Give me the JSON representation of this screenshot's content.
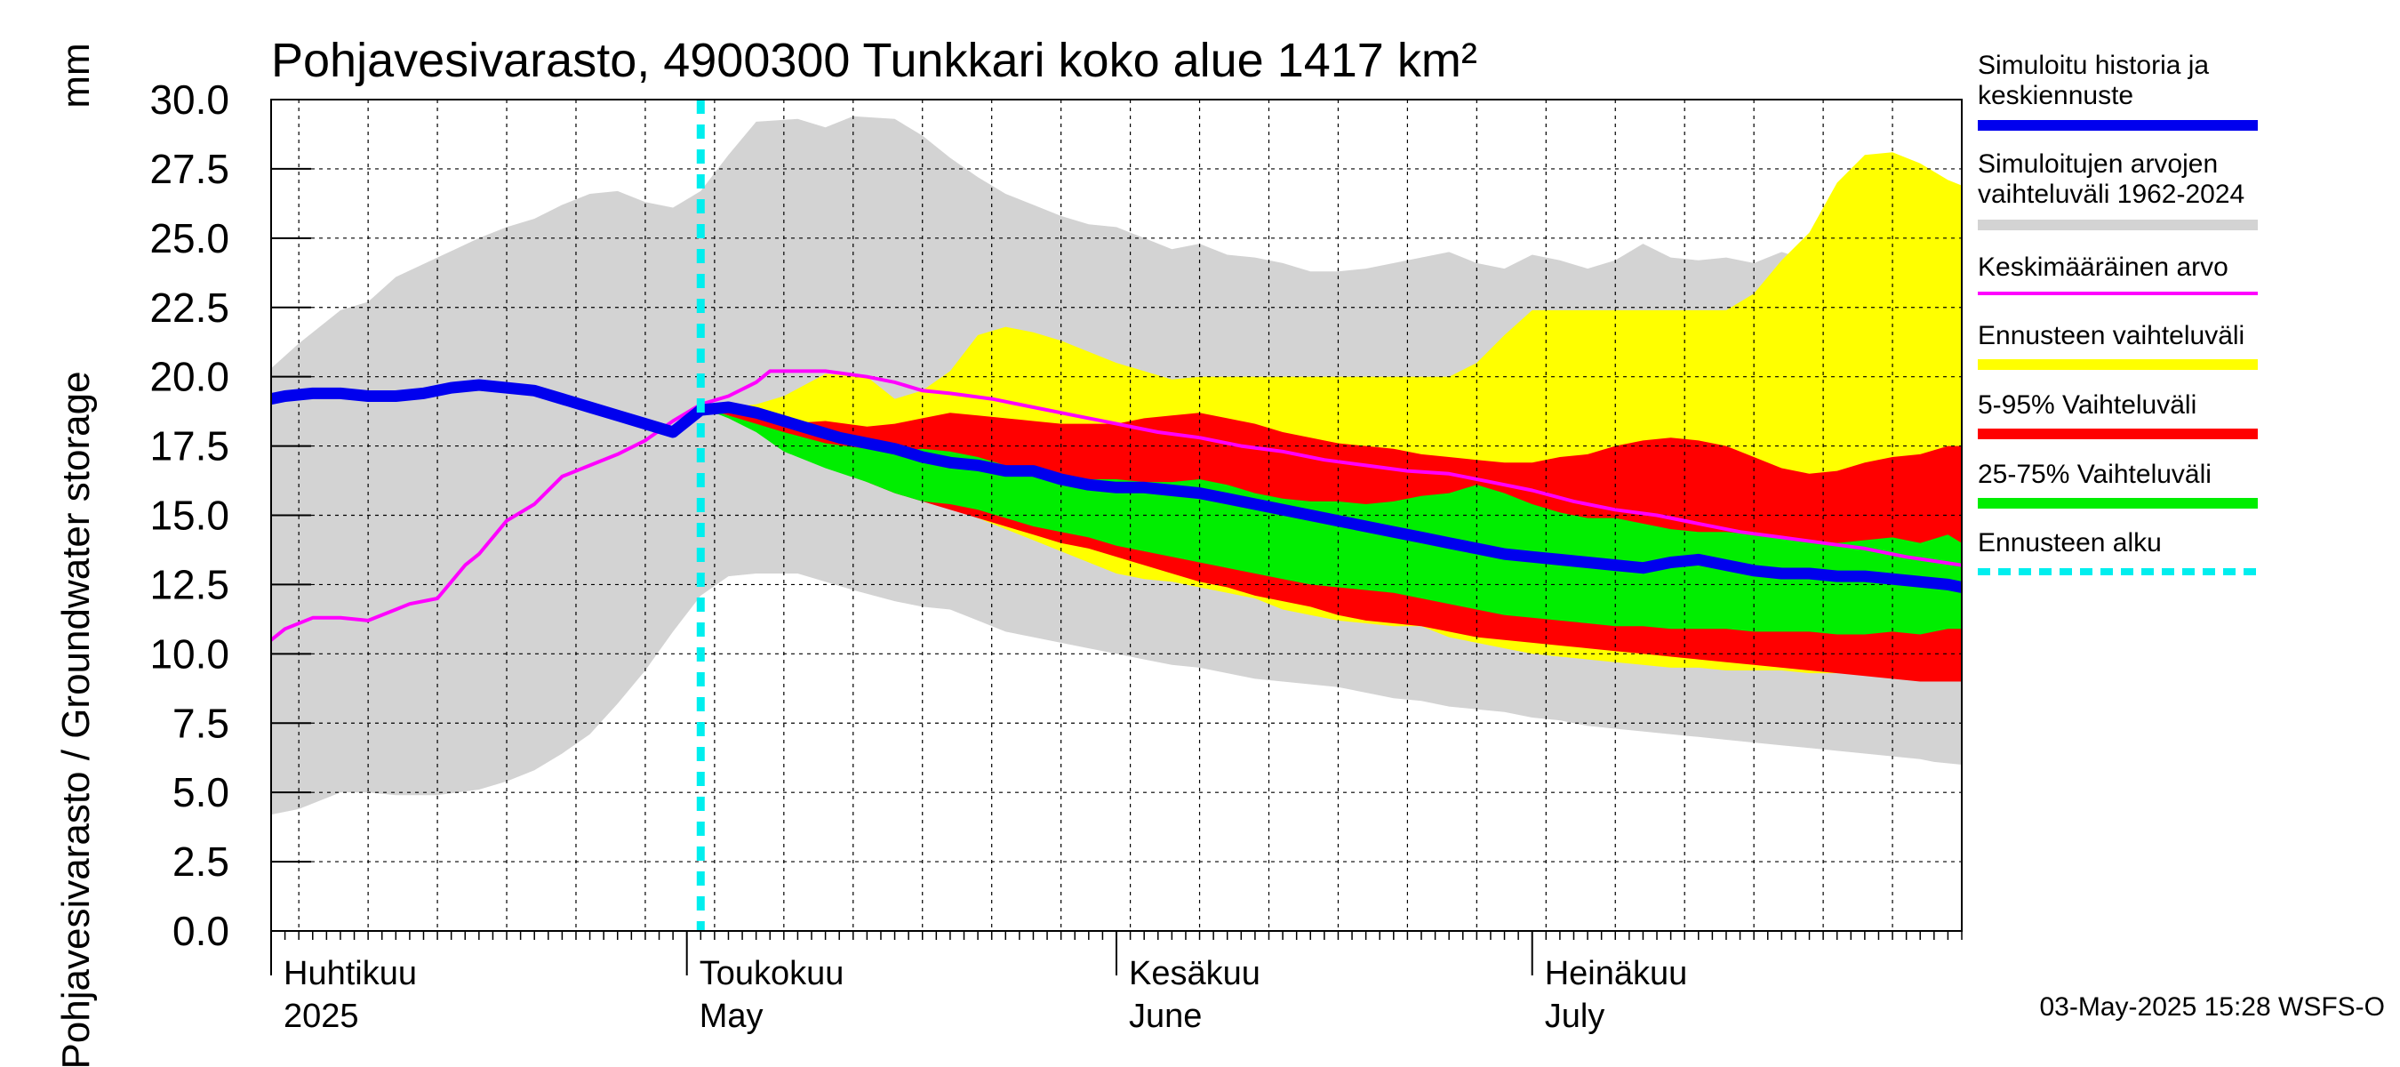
{
  "chart_data": {
    "type": "area",
    "title": "Pohjavesivarasto, 4900300 Tunkkari koko alue 1417 km²",
    "ylabel": "Pohjavesivarasto / Groundwater storage",
    "yunit": "mm",
    "ylim": [
      0,
      30
    ],
    "yticks": [
      "0.0",
      "2.5",
      "5.0",
      "7.5",
      "10.0",
      "12.5",
      "15.0",
      "17.5",
      "20.0",
      "22.5",
      "25.0",
      "27.5",
      "30.0"
    ],
    "x_day_range": [
      0,
      122
    ],
    "months": [
      {
        "fi": "Huhtikuu",
        "en": "2025",
        "day": 0
      },
      {
        "fi": "Toukokuu",
        "en": "May",
        "day": 30
      },
      {
        "fi": "Kesäkuu",
        "en": "June",
        "day": 61
      },
      {
        "fi": "Heinäkuu",
        "en": "July",
        "day": 91
      }
    ],
    "forecast_start_day": 31,
    "series": [
      {
        "name": "Simuloitujen arvojen vaihteluväli 1962-2024",
        "kind": "band",
        "color": "#d3d3d3",
        "x": [
          -2,
          0,
          2,
          5,
          7,
          9,
          12,
          15,
          17,
          19,
          21,
          23,
          25,
          27,
          29,
          31,
          33,
          35,
          38,
          40,
          42,
          45,
          47,
          49,
          51,
          53,
          55,
          57,
          59,
          61,
          63,
          65,
          67,
          69,
          71,
          73,
          75,
          77,
          79,
          81,
          83,
          85,
          87,
          89,
          91,
          93,
          95,
          97,
          99,
          101,
          103,
          105,
          107,
          109,
          111,
          113,
          115,
          117,
          119,
          120,
          122
        ],
        "upper": [
          19.7,
          20.3,
          21.2,
          22.4,
          22.7,
          23.6,
          24.3,
          25.0,
          25.4,
          25.7,
          26.2,
          26.6,
          26.7,
          26.3,
          26.1,
          26.7,
          28.0,
          29.2,
          29.3,
          29.0,
          29.4,
          29.3,
          28.7,
          27.9,
          27.2,
          26.6,
          26.2,
          25.8,
          25.5,
          25.4,
          25.0,
          24.6,
          24.8,
          24.4,
          24.3,
          24.1,
          23.8,
          23.8,
          23.9,
          24.1,
          24.3,
          24.5,
          24.1,
          23.9,
          24.4,
          24.2,
          23.9,
          24.2,
          24.8,
          24.3,
          24.2,
          24.3,
          24.1,
          24.5,
          24.2,
          24.0,
          24.1,
          24.0,
          23.9,
          23.6,
          24.3
        ],
        "lower": [
          4.4,
          4.2,
          4.4,
          5.0,
          5.0,
          4.9,
          4.9,
          5.1,
          5.4,
          5.8,
          6.4,
          7.1,
          8.2,
          9.4,
          10.8,
          12.1,
          12.8,
          12.9,
          12.9,
          12.6,
          12.3,
          11.9,
          11.7,
          11.6,
          11.2,
          10.8,
          10.6,
          10.4,
          10.2,
          10.0,
          9.8,
          9.6,
          9.5,
          9.3,
          9.1,
          9.0,
          8.9,
          8.8,
          8.6,
          8.4,
          8.3,
          8.1,
          8.0,
          7.9,
          7.7,
          7.6,
          7.4,
          7.3,
          7.2,
          7.1,
          7.0,
          6.9,
          6.8,
          6.7,
          6.6,
          6.5,
          6.4,
          6.3,
          6.2,
          6.1,
          6.0
        ]
      },
      {
        "name": "Ennusteen vaihteluväli",
        "kind": "band",
        "color": "#ffff00",
        "x": [
          31,
          33,
          35,
          37,
          40,
          43,
          45,
          47,
          49,
          51,
          53,
          55,
          57,
          59,
          61,
          63,
          65,
          67,
          69,
          71,
          73,
          75,
          77,
          79,
          81,
          83,
          85,
          87,
          89,
          91,
          93,
          95,
          97,
          99,
          101,
          103,
          105,
          107,
          109,
          111,
          113,
          115,
          117,
          119,
          121,
          122
        ],
        "upper": [
          18.9,
          18.9,
          19.0,
          19.3,
          20.1,
          20.0,
          19.2,
          19.5,
          20.2,
          21.5,
          21.8,
          21.6,
          21.3,
          20.9,
          20.5,
          20.2,
          19.9,
          20.0,
          20.0,
          20.0,
          20.0,
          20.0,
          20.0,
          20.0,
          20.0,
          20.0,
          20.0,
          20.5,
          21.5,
          22.4,
          22.4,
          22.4,
          22.4,
          22.4,
          22.4,
          22.4,
          22.4,
          23.0,
          24.2,
          25.2,
          27.0,
          28.0,
          28.1,
          27.7,
          27.1,
          26.9
        ],
        "lower": [
          18.9,
          18.8,
          18.4,
          17.9,
          17.3,
          16.6,
          16.1,
          15.7,
          15.3,
          14.9,
          14.5,
          14.1,
          13.7,
          13.3,
          12.9,
          12.7,
          12.6,
          12.4,
          12.2,
          12.0,
          11.6,
          11.4,
          11.2,
          11.1,
          11.0,
          11.0,
          10.6,
          10.4,
          10.2,
          10.0,
          9.9,
          9.8,
          9.7,
          9.6,
          9.5,
          9.5,
          9.4,
          9.4,
          9.4,
          9.3,
          9.3,
          9.3,
          9.2,
          9.1,
          9.0,
          9.0
        ]
      },
      {
        "name": "5-95% Vaihteluväli",
        "kind": "band",
        "color": "#ff0000",
        "x": [
          31,
          33,
          35,
          37,
          40,
          43,
          45,
          47,
          49,
          51,
          53,
          55,
          57,
          59,
          61,
          63,
          65,
          67,
          69,
          71,
          73,
          75,
          77,
          79,
          81,
          83,
          85,
          87,
          89,
          91,
          93,
          95,
          97,
          99,
          101,
          103,
          105,
          107,
          109,
          111,
          113,
          115,
          117,
          119,
          121,
          122
        ],
        "upper": [
          18.9,
          18.7,
          18.5,
          18.3,
          18.4,
          18.2,
          18.3,
          18.5,
          18.7,
          18.6,
          18.5,
          18.4,
          18.3,
          18.3,
          18.3,
          18.5,
          18.6,
          18.7,
          18.5,
          18.3,
          18.0,
          17.8,
          17.6,
          17.5,
          17.4,
          17.2,
          17.1,
          17.0,
          16.9,
          16.9,
          17.1,
          17.2,
          17.5,
          17.7,
          17.8,
          17.7,
          17.5,
          17.1,
          16.7,
          16.5,
          16.6,
          16.9,
          17.1,
          17.2,
          17.5,
          17.5
        ],
        "lower": [
          18.9,
          18.6,
          18.1,
          17.4,
          16.8,
          16.2,
          15.8,
          15.5,
          15.2,
          14.9,
          14.6,
          14.3,
          14.0,
          13.8,
          13.5,
          13.2,
          12.9,
          12.6,
          12.4,
          12.1,
          11.9,
          11.7,
          11.4,
          11.2,
          11.1,
          11.0,
          10.8,
          10.6,
          10.5,
          10.4,
          10.3,
          10.2,
          10.1,
          10.0,
          9.9,
          9.8,
          9.7,
          9.6,
          9.5,
          9.4,
          9.3,
          9.2,
          9.1,
          9.0,
          9.0,
          9.0
        ]
      },
      {
        "name": "25-75% Vaihteluväli",
        "kind": "band",
        "color": "#00ee00",
        "x": [
          31,
          33,
          35,
          37,
          40,
          43,
          45,
          47,
          49,
          51,
          53,
          55,
          57,
          59,
          61,
          63,
          65,
          67,
          69,
          71,
          73,
          75,
          77,
          79,
          81,
          83,
          85,
          87,
          89,
          91,
          93,
          95,
          97,
          99,
          101,
          103,
          105,
          107,
          109,
          111,
          113,
          115,
          117,
          119,
          121,
          122
        ],
        "upper": [
          18.9,
          18.6,
          18.3,
          18.0,
          17.6,
          17.4,
          17.3,
          17.4,
          17.3,
          17.1,
          16.8,
          16.6,
          16.4,
          16.3,
          16.3,
          16.2,
          16.2,
          16.3,
          16.1,
          15.8,
          15.6,
          15.5,
          15.5,
          15.4,
          15.5,
          15.7,
          15.8,
          16.1,
          15.8,
          15.4,
          15.1,
          14.9,
          14.9,
          14.7,
          14.5,
          14.4,
          14.4,
          14.3,
          14.2,
          14.1,
          14.0,
          14.1,
          14.2,
          14.0,
          14.3,
          14.0
        ],
        "lower": [
          18.9,
          18.5,
          18.0,
          17.3,
          16.7,
          16.2,
          15.8,
          15.5,
          15.4,
          15.2,
          14.9,
          14.6,
          14.4,
          14.2,
          13.9,
          13.7,
          13.5,
          13.3,
          13.1,
          12.9,
          12.7,
          12.5,
          12.4,
          12.3,
          12.2,
          12.0,
          11.8,
          11.6,
          11.4,
          11.3,
          11.2,
          11.1,
          11.0,
          11.0,
          10.9,
          10.9,
          10.9,
          10.8,
          10.8,
          10.8,
          10.7,
          10.7,
          10.8,
          10.7,
          10.9,
          10.9
        ]
      },
      {
        "name": "Keskimääräinen arvo",
        "kind": "line",
        "color": "#ff00ff",
        "x": [
          0,
          1,
          3,
          5,
          7,
          9,
          10,
          12,
          14,
          15,
          17,
          19,
          21,
          23,
          25,
          27,
          29,
          31,
          33,
          35,
          36,
          38,
          40,
          43,
          45,
          47,
          49,
          52,
          55,
          58,
          61,
          64,
          67,
          70,
          73,
          76,
          79,
          82,
          85,
          88,
          91,
          94,
          97,
          100,
          103,
          106,
          109,
          112,
          115,
          118,
          122
        ],
        "values": [
          10.5,
          10.9,
          11.3,
          11.3,
          11.2,
          11.6,
          11.8,
          12.0,
          13.2,
          13.6,
          14.8,
          15.4,
          16.4,
          16.8,
          17.2,
          17.7,
          18.4,
          19.0,
          19.3,
          19.8,
          20.2,
          20.2,
          20.2,
          20.0,
          19.8,
          19.5,
          19.4,
          19.2,
          18.9,
          18.6,
          18.3,
          18.0,
          17.8,
          17.5,
          17.3,
          17.0,
          16.8,
          16.6,
          16.5,
          16.2,
          15.9,
          15.5,
          15.2,
          15.0,
          14.7,
          14.4,
          14.2,
          14.0,
          13.8,
          13.5,
          13.2
        ]
      },
      {
        "name": "Simuloitu historia ja keskiennuste",
        "kind": "line",
        "color": "#0000ee",
        "x": [
          -2,
          -1,
          1,
          3,
          5,
          7,
          9,
          11,
          13,
          15,
          17,
          19,
          21,
          23,
          25,
          27,
          29,
          31,
          33,
          35,
          37,
          39,
          41,
          43,
          45,
          47,
          49,
          51,
          53,
          55,
          57,
          59,
          61,
          63,
          65,
          67,
          69,
          71,
          73,
          75,
          77,
          79,
          81,
          83,
          85,
          87,
          89,
          91,
          93,
          95,
          97,
          99,
          101,
          103,
          105,
          107,
          109,
          111,
          113,
          115,
          117,
          119,
          121,
          122
        ],
        "values": [
          18.8,
          19.1,
          19.3,
          19.4,
          19.4,
          19.3,
          19.3,
          19.4,
          19.6,
          19.7,
          19.6,
          19.5,
          19.2,
          18.9,
          18.6,
          18.3,
          18.0,
          18.8,
          18.9,
          18.7,
          18.4,
          18.1,
          17.8,
          17.6,
          17.4,
          17.1,
          16.9,
          16.8,
          16.6,
          16.6,
          16.3,
          16.1,
          16.0,
          16.0,
          15.9,
          15.8,
          15.6,
          15.4,
          15.2,
          15.0,
          14.8,
          14.6,
          14.4,
          14.2,
          14.0,
          13.8,
          13.6,
          13.5,
          13.4,
          13.3,
          13.2,
          13.1,
          13.3,
          13.4,
          13.2,
          13.0,
          12.9,
          12.9,
          12.8,
          12.8,
          12.7,
          12.6,
          12.5,
          12.4
        ]
      }
    ],
    "legend": [
      {
        "label": "Simuloitu historia ja keskiennuste",
        "color": "#0000ee",
        "style": "solid"
      },
      {
        "label": "Simuloitujen arvojen vaihteluväli 1962-2024",
        "color": "#d3d3d3",
        "style": "solid"
      },
      {
        "label": "Keskimääräinen arvo",
        "color": "#ff00ff",
        "style": "thin"
      },
      {
        "label": "Ennusteen vaihteluväli",
        "color": "#ffff00",
        "style": "solid"
      },
      {
        "label": "5-95% Vaihteluväli",
        "color": "#ff0000",
        "style": "solid"
      },
      {
        "label": "25-75% Vaihteluväli",
        "color": "#00ee00",
        "style": "solid"
      },
      {
        "label": "Ennusteen alku",
        "color": "#00eeee",
        "style": "dashed"
      }
    ],
    "footer": "03-May-2025 15:28 WSFS-O"
  }
}
